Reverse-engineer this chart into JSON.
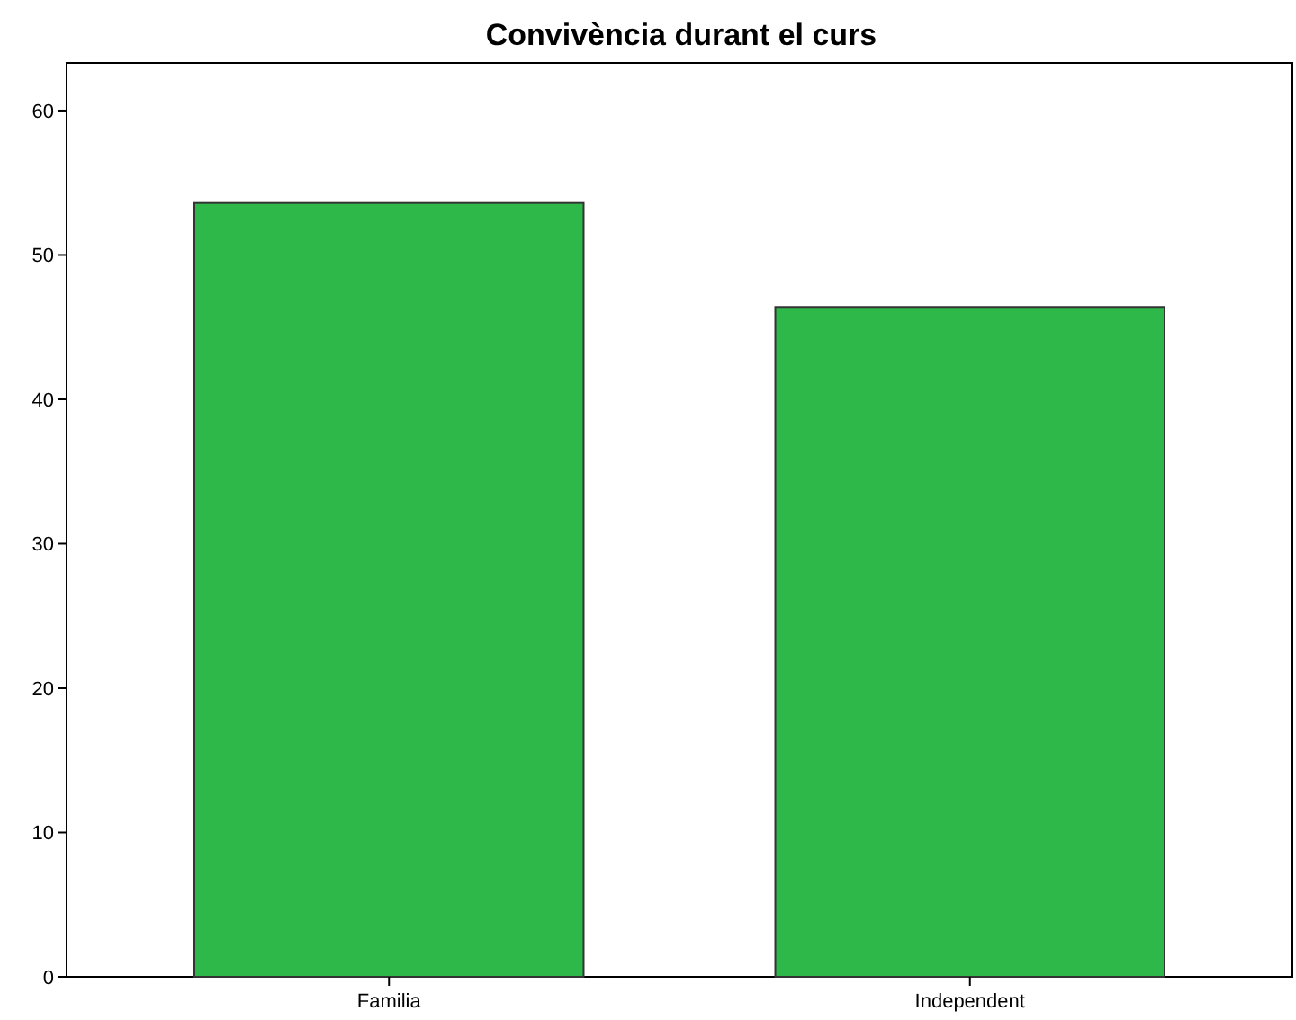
{
  "chart_data": {
    "type": "bar",
    "title": "Convivència durant el curs",
    "categories": [
      "Familia",
      "Independent"
    ],
    "values": [
      53.6,
      46.4
    ],
    "color": "#2eb84a",
    "ylim": [
      0,
      63.3
    ],
    "yticks": [
      0,
      10,
      20,
      30,
      40,
      50,
      60
    ],
    "grid": false
  }
}
